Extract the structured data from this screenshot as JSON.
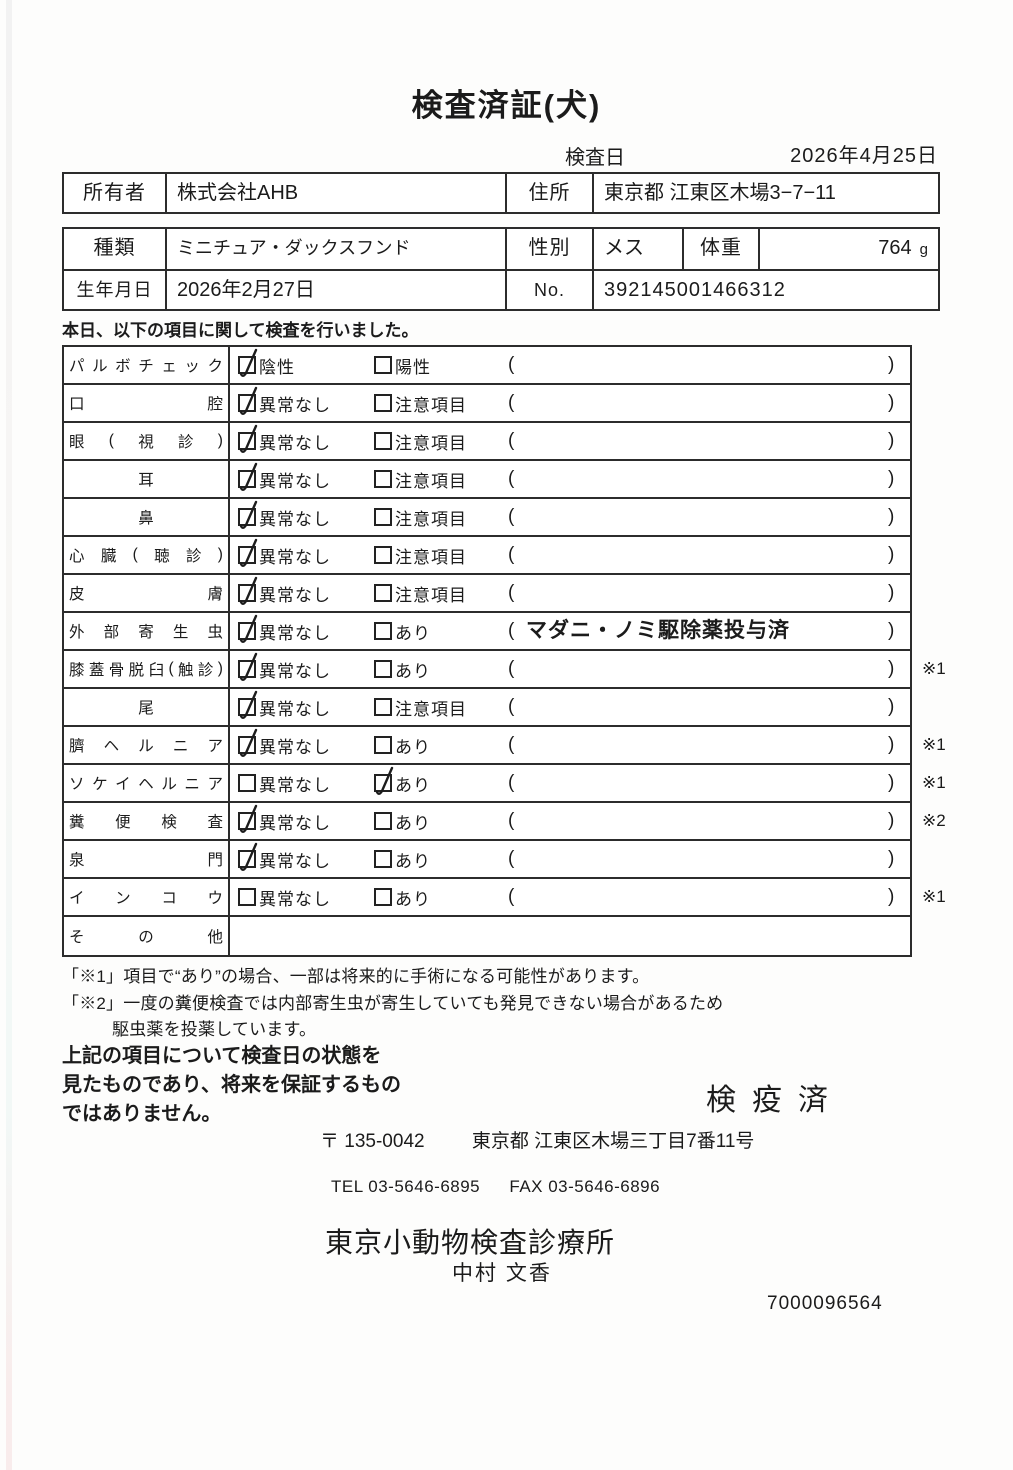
{
  "page": {
    "title": "検査済証(犬)",
    "inspection_date_label": "検査日",
    "inspection_date_value": "2026年4月25日",
    "intro": "本日、以下の項目に関して検査を行いました。"
  },
  "owner": {
    "owner_label": "所有者",
    "owner_value": "株式会社AHB",
    "address_label": "住所",
    "address_value": "東京都 江東区木場3−7−11"
  },
  "animal": {
    "breed_label": "種類",
    "breed_value": "ミニチュア・ダックスフンド",
    "sex_label": "性別",
    "sex_value": "メス",
    "weight_label": "体重",
    "weight_value": "764",
    "weight_unit": "g",
    "birth_label": "生年月日",
    "birth_value": "2026年2月27日",
    "no_label": "No.",
    "no_value": "392145001466312"
  },
  "exam": {
    "rows": [
      {
        "name": "パルボチェック",
        "name_align": "justify",
        "opt1": {
          "label": "陰性",
          "checked": true
        },
        "opt2": {
          "label": "陽性",
          "checked": false
        },
        "note": "",
        "ref": ""
      },
      {
        "name": "口腔",
        "name_align": "justify",
        "opt1": {
          "label": "異常なし",
          "checked": true
        },
        "opt2": {
          "label": "注意項目",
          "checked": false
        },
        "note": "",
        "ref": ""
      },
      {
        "name": "眼(視診)",
        "name_align": "justify",
        "opt1": {
          "label": "異常なし",
          "checked": true
        },
        "opt2": {
          "label": "注意項目",
          "checked": false
        },
        "note": "",
        "ref": ""
      },
      {
        "name": "耳",
        "name_align": "center",
        "opt1": {
          "label": "異常なし",
          "checked": true
        },
        "opt2": {
          "label": "注意項目",
          "checked": false
        },
        "note": "",
        "ref": ""
      },
      {
        "name": "鼻",
        "name_align": "center",
        "opt1": {
          "label": "異常なし",
          "checked": true
        },
        "opt2": {
          "label": "注意項目",
          "checked": false
        },
        "note": "",
        "ref": ""
      },
      {
        "name": "心臓(聴診)",
        "name_align": "justify",
        "opt1": {
          "label": "異常なし",
          "checked": true
        },
        "opt2": {
          "label": "注意項目",
          "checked": false
        },
        "note": "",
        "ref": ""
      },
      {
        "name": "皮膚",
        "name_align": "justify",
        "opt1": {
          "label": "異常なし",
          "checked": true
        },
        "opt2": {
          "label": "注意項目",
          "checked": false
        },
        "note": "",
        "ref": ""
      },
      {
        "name": "外部寄生虫",
        "name_align": "justify",
        "opt1": {
          "label": "異常なし",
          "checked": true
        },
        "opt2": {
          "label": "あり",
          "checked": false
        },
        "note": "マダニ・ノミ駆除薬投与済",
        "ref": ""
      },
      {
        "name": "膝蓋骨脱臼(触診)",
        "name_align": "justify",
        "opt1": {
          "label": "異常なし",
          "checked": true
        },
        "opt2": {
          "label": "あり",
          "checked": false
        },
        "note": "",
        "ref": "※1"
      },
      {
        "name": "尾",
        "name_align": "center",
        "opt1": {
          "label": "異常なし",
          "checked": true
        },
        "opt2": {
          "label": "注意項目",
          "checked": false
        },
        "note": "",
        "ref": ""
      },
      {
        "name": "臍ヘルニア",
        "name_align": "justify",
        "opt1": {
          "label": "異常なし",
          "checked": true
        },
        "opt2": {
          "label": "あり",
          "checked": false
        },
        "note": "",
        "ref": "※1"
      },
      {
        "name": "ソケイヘルニア",
        "name_align": "justify",
        "opt1": {
          "label": "異常なし",
          "checked": false
        },
        "opt2": {
          "label": "あり",
          "checked": true
        },
        "note": "",
        "ref": "※1"
      },
      {
        "name": "糞便検査",
        "name_align": "justify",
        "opt1": {
          "label": "異常なし",
          "checked": true
        },
        "opt2": {
          "label": "あり",
          "checked": false
        },
        "note": "",
        "ref": "※2"
      },
      {
        "name": "泉門",
        "name_align": "justify",
        "opt1": {
          "label": "異常なし",
          "checked": true
        },
        "opt2": {
          "label": "あり",
          "checked": false
        },
        "note": "",
        "ref": ""
      },
      {
        "name": "インコウ",
        "name_align": "justify",
        "opt1": {
          "label": "異常なし",
          "checked": false
        },
        "opt2": {
          "label": "あり",
          "checked": false
        },
        "note": "",
        "ref": "※1"
      },
      {
        "name": "その他",
        "name_align": "justify",
        "opt1": null,
        "opt2": null,
        "has_parens": false,
        "note": "",
        "ref": ""
      }
    ]
  },
  "footnotes": {
    "note1": "「※1」項目で“あり”の場合、一部は将来的に手術になる可能性があります。",
    "note2_line1": "「※2」一度の糞便検査では内部寄生虫が寄生していても発見できない場合があるため",
    "note2_line2": "駆虫薬を投薬しています。"
  },
  "disclaimer": {
    "line1": "上記の項目について検査日の状態を",
    "line2": "見たものであり、将来を保証するもの",
    "line3": "ではありません。"
  },
  "stamp_text": "検疫済",
  "clinic": {
    "postal": "〒 135-0042",
    "address": "東京都 江東区木場三丁目7番11号",
    "tel": "TEL 03-5646-6895",
    "fax": "FAX 03-5646-6896",
    "name": "東京小動物検査診療所",
    "vet_name": "中村 文香",
    "code": "7000096564"
  }
}
